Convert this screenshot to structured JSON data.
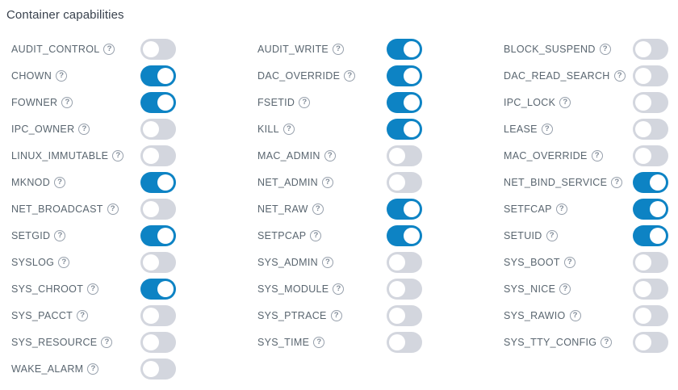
{
  "page": {
    "title": "Container capabilities"
  },
  "colors": {
    "toggle_on": "#0d83c4",
    "toggle_off": "#d3d6de",
    "label": "#5a6670",
    "title": "#39424e"
  },
  "help_icon_glyph": "?",
  "capabilities": [
    {
      "label": "AUDIT_CONTROL",
      "enabled": false
    },
    {
      "label": "AUDIT_WRITE",
      "enabled": true
    },
    {
      "label": "BLOCK_SUSPEND",
      "enabled": false
    },
    {
      "label": "CHOWN",
      "enabled": true
    },
    {
      "label": "DAC_OVERRIDE",
      "enabled": true
    },
    {
      "label": "DAC_READ_SEARCH",
      "enabled": false
    },
    {
      "label": "FOWNER",
      "enabled": true
    },
    {
      "label": "FSETID",
      "enabled": true
    },
    {
      "label": "IPC_LOCK",
      "enabled": false
    },
    {
      "label": "IPC_OWNER",
      "enabled": false
    },
    {
      "label": "KILL",
      "enabled": true
    },
    {
      "label": "LEASE",
      "enabled": false
    },
    {
      "label": "LINUX_IMMUTABLE",
      "enabled": false
    },
    {
      "label": "MAC_ADMIN",
      "enabled": false
    },
    {
      "label": "MAC_OVERRIDE",
      "enabled": false
    },
    {
      "label": "MKNOD",
      "enabled": true
    },
    {
      "label": "NET_ADMIN",
      "enabled": false
    },
    {
      "label": "NET_BIND_SERVICE",
      "enabled": true
    },
    {
      "label": "NET_BROADCAST",
      "enabled": false
    },
    {
      "label": "NET_RAW",
      "enabled": true
    },
    {
      "label": "SETFCAP",
      "enabled": true
    },
    {
      "label": "SETGID",
      "enabled": true
    },
    {
      "label": "SETPCAP",
      "enabled": true
    },
    {
      "label": "SETUID",
      "enabled": true
    },
    {
      "label": "SYSLOG",
      "enabled": false
    },
    {
      "label": "SYS_ADMIN",
      "enabled": false
    },
    {
      "label": "SYS_BOOT",
      "enabled": false
    },
    {
      "label": "SYS_CHROOT",
      "enabled": true
    },
    {
      "label": "SYS_MODULE",
      "enabled": false
    },
    {
      "label": "SYS_NICE",
      "enabled": false
    },
    {
      "label": "SYS_PACCT",
      "enabled": false
    },
    {
      "label": "SYS_PTRACE",
      "enabled": false
    },
    {
      "label": "SYS_RAWIO",
      "enabled": false
    },
    {
      "label": "SYS_RESOURCE",
      "enabled": false
    },
    {
      "label": "SYS_TIME",
      "enabled": false
    },
    {
      "label": "SYS_TTY_CONFIG",
      "enabled": false
    },
    {
      "label": "WAKE_ALARM",
      "enabled": false
    }
  ]
}
